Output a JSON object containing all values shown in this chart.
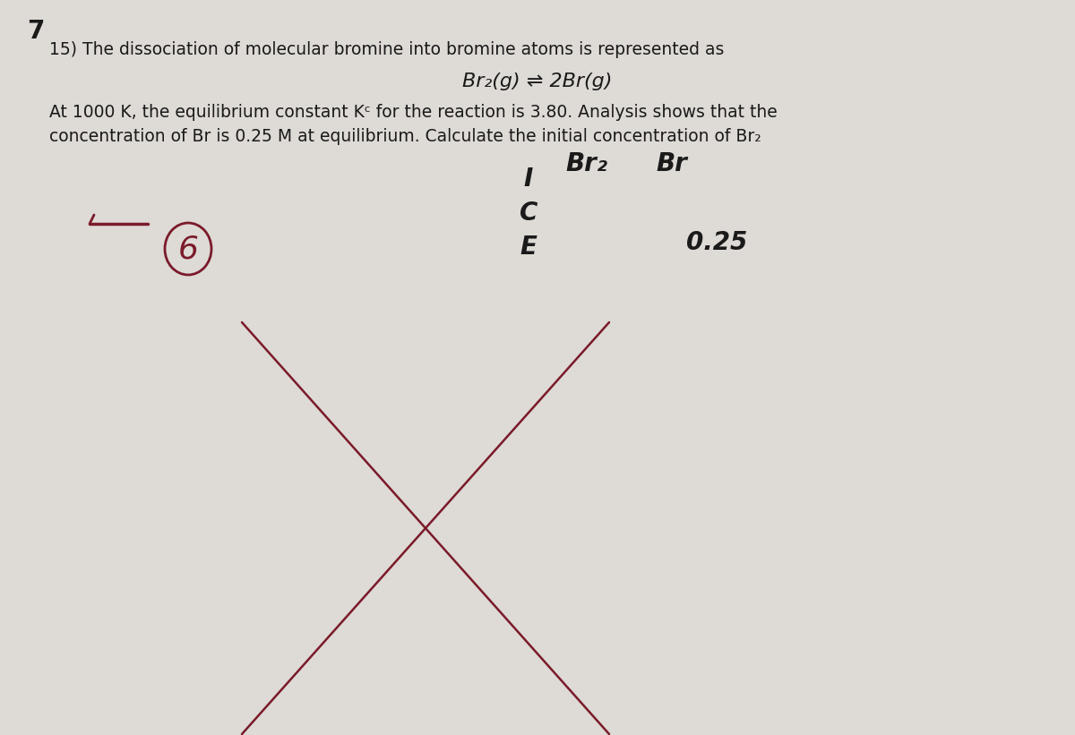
{
  "background_color": "#dedad5",
  "page_number": "7",
  "problem_text": "15) The dissociation of molecular bromine into bromine atoms is represented as",
  "equation": "Br₂(g) ⇌ 2Br(g)",
  "body_line1": "At 1000 K, the equilibrium constant Kᶜ for the reaction is 3.80. Analysis shows that the",
  "body_line2": "concentration of Br is 0.25 M at equilibrium. Calculate the initial concentration of Br₂",
  "ice_I": "I",
  "ice_C": "C",
  "ice_E": "E",
  "col_br2": "Br₂",
  "col_br": "Br",
  "eq_value": "0.25",
  "text_color": "#1a1a1a",
  "red_color": "#7a1a2a",
  "score_text": "−",
  "score_num": "6"
}
